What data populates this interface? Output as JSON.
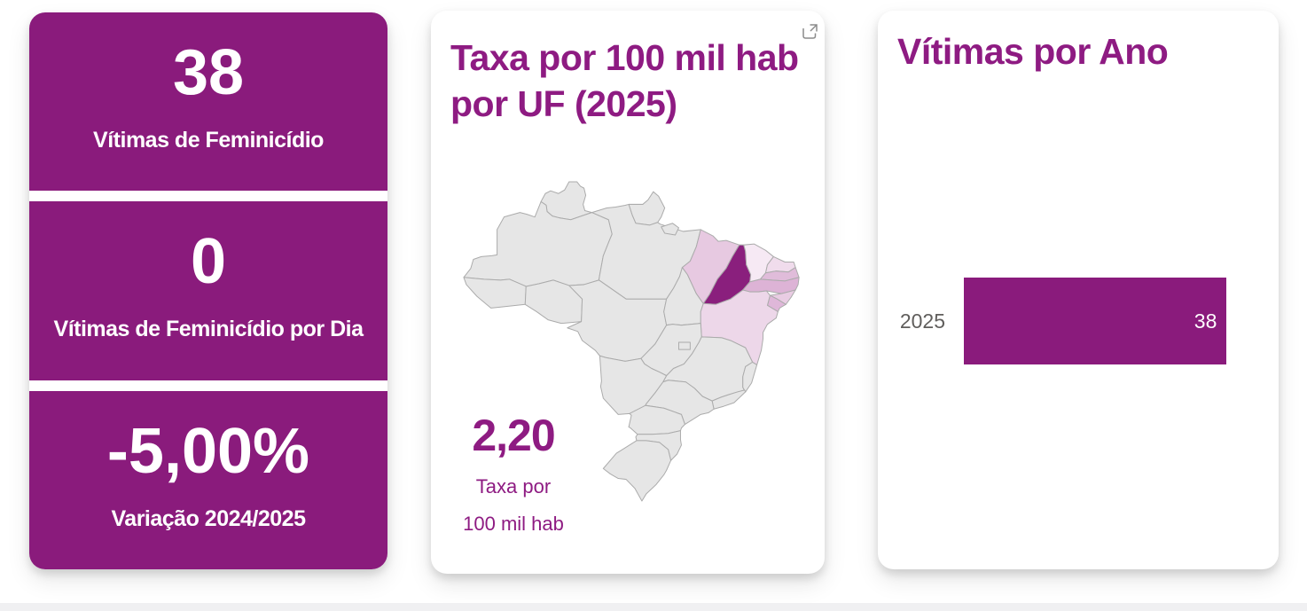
{
  "theme": {
    "purple": "#8a1b7c",
    "title_purple": "#8e1b82",
    "card_bg": "#ffffff",
    "page_bg": "#ffffff",
    "bottom_strip": "#f0f0f2",
    "axis_label_grey": "#605e5c",
    "map_default_fill": "#e6e6e6",
    "map_border": "#ababab"
  },
  "kpi_cards": [
    {
      "value": "38",
      "label": "Vítimas de Feminicídio"
    },
    {
      "value": "0",
      "label": "Vítimas de Feminicídio por Dia"
    },
    {
      "value": "-5,00%",
      "label": "Variação 2024/2025"
    }
  ],
  "map_card": {
    "title_line1": "Taxa por 100 mil hab",
    "title_line2": "por UF (2025)",
    "popout_icon": "open-in-focus-icon",
    "callout_value": "2,20",
    "callout_label_line1": "Taxa por",
    "callout_label_line2": "100 mil hab",
    "states": {
      "default": "#e6e6e6",
      "MA": "#e7c9e1",
      "PI": "#8a1f7d",
      "CE": "#f6e9f4",
      "RN": "#f0dcec",
      "PB": "#e0bcda",
      "PE": "#ddb3d6",
      "AL": "#e9cce3",
      "SE": "#dfb7d9",
      "BA": "#edd7e9"
    }
  },
  "bar_card": {
    "title": "Vítimas por Ano"
  },
  "chart_data": {
    "type": "bar",
    "orientation": "horizontal",
    "title": "Vítimas por Ano",
    "categories": [
      "2025"
    ],
    "values": [
      38
    ],
    "axis_max": 45,
    "data_labels": true,
    "bar_color": "#8a1b7c",
    "category_label_color": "#605e5c"
  }
}
